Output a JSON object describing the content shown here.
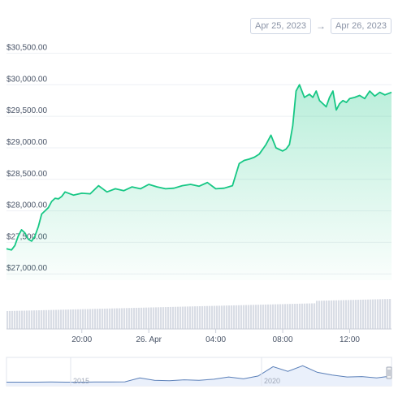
{
  "range": {
    "start": "Apr 25, 2023",
    "arrow": "→",
    "end": "Apr 26, 2023"
  },
  "chart_data": {
    "type": "area",
    "title": "",
    "ylim": [
      26900,
      30700
    ],
    "y_ticks": [
      27000,
      27500,
      28000,
      28500,
      29000,
      29500,
      30000,
      30500
    ],
    "y_tick_labels": [
      "$27,000.00",
      "$27,500.00",
      "$28,000.00",
      "$28,500.00",
      "$29,000.00",
      "$29,500.00",
      "$30,000.00",
      "$30,500.00"
    ],
    "x_tick_labels": [
      "20:00",
      "26. Apr",
      "04:00",
      "08:00",
      "12:00"
    ],
    "x_ticks_hours": [
      20,
      24,
      28,
      32,
      36
    ],
    "xlim_hours": [
      15.5,
      38.5
    ],
    "line_color": "#16c784",
    "grid": true,
    "series": [
      {
        "x_hours": [
          15.5,
          15.8,
          16.0,
          16.2,
          16.4,
          16.6,
          16.8,
          17.0,
          17.2,
          17.4,
          17.6,
          17.8,
          18.0,
          18.2,
          18.4,
          18.6,
          18.8,
          19.0,
          19.5,
          20.0,
          20.5,
          21.0,
          21.5,
          22.0,
          22.5,
          23.0,
          23.5,
          24.0,
          24.5,
          25.0,
          25.5,
          26.0,
          26.5,
          27.0,
          27.5,
          28.0,
          28.5,
          29.0,
          29.4,
          29.7,
          30.0,
          30.3,
          30.6,
          31.0,
          31.3,
          31.6,
          32.0,
          32.2,
          32.4,
          32.6,
          32.8,
          33.0,
          33.3,
          33.6,
          33.8,
          34.0,
          34.2,
          34.4,
          34.6,
          34.8,
          35.0,
          35.2,
          35.4,
          35.6,
          35.8,
          36.0,
          36.3,
          36.6,
          36.9,
          37.2,
          37.5,
          37.8,
          38.1,
          38.5
        ],
        "values": [
          27400,
          27380,
          27450,
          27600,
          27700,
          27650,
          27550,
          27520,
          27600,
          27750,
          27950,
          28000,
          28050,
          28150,
          28200,
          28190,
          28230,
          28300,
          28250,
          28280,
          28270,
          28400,
          28300,
          28350,
          28320,
          28380,
          28350,
          28420,
          28380,
          28350,
          28360,
          28400,
          28420,
          28390,
          28450,
          28350,
          28360,
          28400,
          28750,
          28800,
          28820,
          28850,
          28900,
          29050,
          29200,
          29000,
          28950,
          28980,
          29050,
          29350,
          29900,
          30000,
          29800,
          29850,
          29800,
          29900,
          29750,
          29700,
          29650,
          29800,
          29900,
          29600,
          29700,
          29750,
          29720,
          29780,
          29800,
          29830,
          29780,
          29900,
          29820,
          29880,
          29840,
          29880
        ]
      }
    ],
    "volume_bars": "uniform light grey bars rising slightly toward the right",
    "navigator": {
      "labels": [
        "2015",
        "2020"
      ],
      "series_relative": [
        0.02,
        0.02,
        0.02,
        0.03,
        0.02,
        0.02,
        0.03,
        0.03,
        0.04,
        0.25,
        0.12,
        0.1,
        0.15,
        0.12,
        0.18,
        0.3,
        0.2,
        0.35,
        0.85,
        0.6,
        0.9,
        0.55,
        0.4,
        0.3,
        0.32,
        0.25,
        0.35
      ]
    }
  }
}
